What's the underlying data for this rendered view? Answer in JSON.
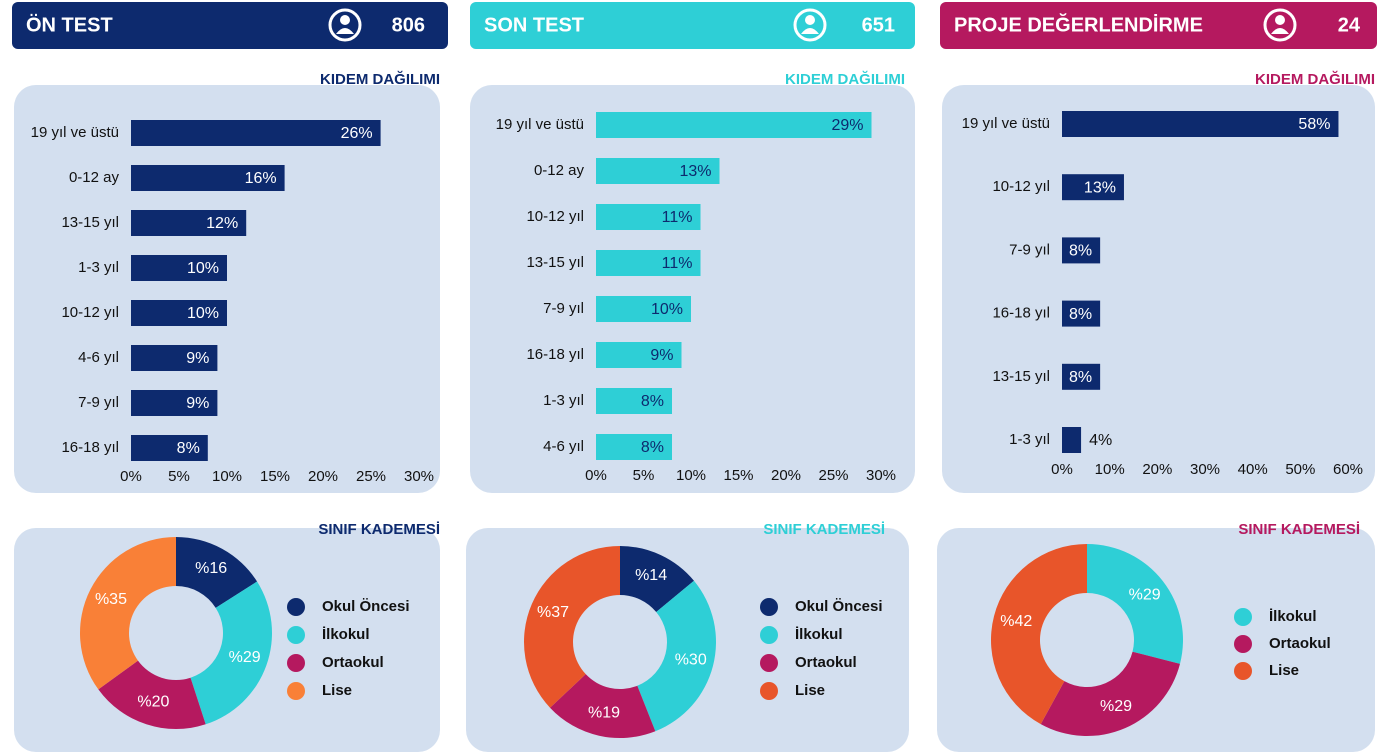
{
  "headers": [
    {
      "title": "ÖN TEST",
      "count": "806",
      "color": "#0d2a6e"
    },
    {
      "title": "SON TEST",
      "count": "651",
      "color": "#2ecfd6"
    },
    {
      "title": "PROJE DEĞERLENDİRME",
      "count": "24",
      "color": "#b5195f"
    }
  ],
  "chart_data": [
    {
      "type": "bar",
      "title": "KIDEM DAĞILIMI",
      "title_color": "#0d2a6e",
      "color": "#0d2a6e",
      "label_color": "#ffffff",
      "categories": [
        "19 yıl ve üstü",
        "0-12 ay",
        "13-15 yıl",
        "1-3 yıl",
        "10-12 yıl",
        "4-6 yıl",
        "7-9 yıl",
        "16-18 yıl"
      ],
      "values": [
        26,
        16,
        12,
        10,
        10,
        9,
        9,
        8
      ],
      "value_labels": [
        "26%",
        "16%",
        "12%",
        "10%",
        "10%",
        "9%",
        "9%",
        "8%"
      ],
      "xlim": [
        0,
        30
      ],
      "xticks": [
        {
          "value": 0,
          "label": "0%"
        },
        {
          "value": 5,
          "label": "5%"
        },
        {
          "value": 10,
          "label": "10%"
        },
        {
          "value": 15,
          "label": "15%"
        },
        {
          "value": 20,
          "label": "20%"
        },
        {
          "value": 25,
          "label": "25%"
        },
        {
          "value": 30,
          "label": "30%"
        }
      ]
    },
    {
      "type": "donut",
      "title": "SINIF KADEMESİ",
      "title_color": "#0d2a6e",
      "categories": [
        "Okul Öncesi",
        "İlkokul",
        "Ortaokul",
        "Lise"
      ],
      "values": [
        16,
        29,
        20,
        35
      ],
      "value_labels": [
        "%16",
        "%29",
        "%20",
        "%35"
      ],
      "colors": [
        "#0d2a6e",
        "#2ecfd6",
        "#b5195f",
        "#f98037"
      ]
    },
    {
      "type": "bar",
      "title": "KIDEM DAĞILIMI",
      "title_color": "#2ecfd6",
      "color": "#2ecfd6",
      "label_color": "#0d2a6e",
      "categories": [
        "19 yıl ve üstü",
        "0-12 ay",
        "10-12 yıl",
        "13-15 yıl",
        "7-9 yıl",
        "16-18 yıl",
        "1-3 yıl",
        "4-6 yıl"
      ],
      "values": [
        29,
        13,
        11,
        11,
        10,
        9,
        8,
        8
      ],
      "value_labels": [
        "29%",
        "13%",
        "11%",
        "11%",
        "10%",
        "9%",
        "8%",
        "8%"
      ],
      "xlim": [
        0,
        30
      ],
      "xticks": [
        {
          "value": 0,
          "label": "0%"
        },
        {
          "value": 5,
          "label": "5%"
        },
        {
          "value": 10,
          "label": "10%"
        },
        {
          "value": 15,
          "label": "15%"
        },
        {
          "value": 20,
          "label": "20%"
        },
        {
          "value": 25,
          "label": "25%"
        },
        {
          "value": 30,
          "label": "30%"
        }
      ]
    },
    {
      "type": "donut",
      "title": "SINIF KADEMESİ",
      "title_color": "#2ecfd6",
      "categories": [
        "Okul Öncesi",
        "İlkokul",
        "Ortaokul",
        "Lise"
      ],
      "values": [
        14,
        30,
        19,
        37
      ],
      "value_labels": [
        "%14",
        "%30",
        "%19",
        "%37"
      ],
      "colors": [
        "#0d2a6e",
        "#2ecfd6",
        "#b5195f",
        "#e8552a"
      ]
    },
    {
      "type": "bar",
      "title": "KIDEM DAĞILIMI",
      "title_color": "#b5195f",
      "color": "#0d2a6e",
      "label_color": "#ffffff",
      "categories": [
        "19 yıl ve üstü",
        "10-12 yıl",
        "7-9 yıl",
        "16-18 yıl",
        "13-15 yıl",
        "1-3 yıl"
      ],
      "values": [
        58,
        13,
        8,
        8,
        8,
        4
      ],
      "value_labels": [
        "58%",
        "13%",
        "8%",
        "8%",
        "8%",
        "4%"
      ],
      "xlim": [
        0,
        60
      ],
      "xticks": [
        {
          "value": 0,
          "label": "0%"
        },
        {
          "value": 10,
          "label": "10%"
        },
        {
          "value": 20,
          "label": "20%"
        },
        {
          "value": 30,
          "label": "30%"
        },
        {
          "value": 40,
          "label": "40%"
        },
        {
          "value": 50,
          "label": "50%"
        },
        {
          "value": 60,
          "label": "60%"
        }
      ]
    },
    {
      "type": "donut",
      "title": "SINIF KADEMESİ",
      "title_color": "#b5195f",
      "categories": [
        "İlkokul",
        "Ortaokul",
        "Lise"
      ],
      "values": [
        29,
        29,
        42
      ],
      "value_labels": [
        "%29",
        "%29",
        "%42"
      ],
      "colors": [
        "#2ecfd6",
        "#b5195f",
        "#e8552a"
      ]
    }
  ]
}
